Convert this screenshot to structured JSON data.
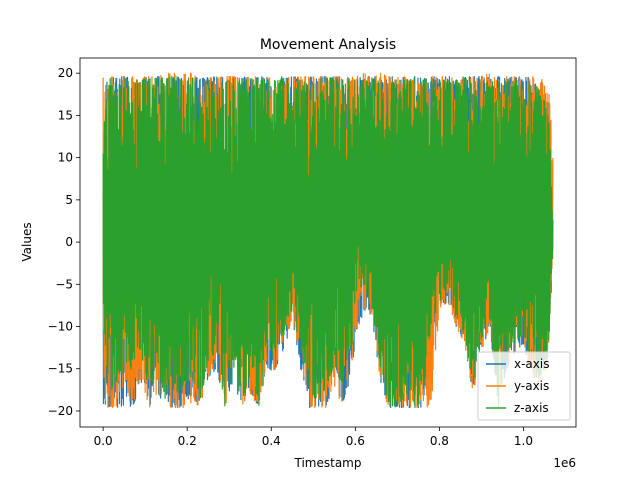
{
  "chart_data": {
    "type": "line",
    "title": "Movement Analysis",
    "xlabel": "Timestamp",
    "ylabel": "Values",
    "x_offset_label": "1e6",
    "xlim": [
      -0.055,
      1.125
    ],
    "ylim": [
      -21.9,
      21.8
    ],
    "x_ticks": [
      0.0,
      0.2,
      0.4,
      0.6,
      0.8,
      1.0
    ],
    "x_tick_labels": [
      "0.0",
      "0.2",
      "0.4",
      "0.6",
      "0.8",
      "1.0"
    ],
    "y_ticks": [
      -20,
      -15,
      -10,
      -5,
      0,
      5,
      10,
      15,
      20
    ],
    "y_tick_labels": [
      "−20",
      "−15",
      "−10",
      "−5",
      "0",
      "5",
      "10",
      "15",
      "20"
    ],
    "x_data_range": [
      0.0,
      1.07
    ],
    "legend_position": "lower-right",
    "series": [
      {
        "name": "x-axis",
        "color": "#1f77b4",
        "envelope": [
          [
            0.0,
            -19.6,
            12
          ],
          [
            0.01,
            -19.5,
            19.6
          ],
          [
            0.03,
            -19.6,
            19.6
          ],
          [
            0.05,
            -19.6,
            19.6
          ],
          [
            0.07,
            -19.5,
            19.5
          ],
          [
            0.09,
            -17,
            19.4
          ],
          [
            0.11,
            -19.6,
            19.6
          ],
          [
            0.13,
            -18,
            19.6
          ],
          [
            0.15,
            -19.5,
            19.5
          ],
          [
            0.17,
            -19.6,
            19.6
          ],
          [
            0.19,
            -19.5,
            19.5
          ],
          [
            0.21,
            -18,
            19.6
          ],
          [
            0.23,
            -19.6,
            19.4
          ],
          [
            0.25,
            -16,
            19.5
          ],
          [
            0.27,
            -15,
            19.6
          ],
          [
            0.29,
            -19.6,
            19.6
          ],
          [
            0.31,
            -17,
            19.5
          ],
          [
            0.33,
            -19.6,
            19.6
          ],
          [
            0.35,
            -18,
            19.4
          ],
          [
            0.37,
            -19.6,
            19.6
          ],
          [
            0.39,
            -16,
            19.5
          ],
          [
            0.41,
            -15,
            19.5
          ],
          [
            0.43,
            -13,
            19.6
          ],
          [
            0.45,
            -9,
            19.6
          ],
          [
            0.47,
            -15,
            19.5
          ],
          [
            0.49,
            -19.6,
            19.6
          ],
          [
            0.51,
            -19.6,
            19.6
          ],
          [
            0.53,
            -19.4,
            19.6
          ],
          [
            0.55,
            -17,
            19.6
          ],
          [
            0.57,
            -19.4,
            19.5
          ],
          [
            0.59,
            -16,
            19.6
          ],
          [
            0.6,
            -12,
            19.4
          ],
          [
            0.62,
            -8,
            19.6
          ],
          [
            0.64,
            -9,
            19.6
          ],
          [
            0.66,
            -17,
            19.5
          ],
          [
            0.68,
            -19.6,
            19.6
          ],
          [
            0.7,
            -19.6,
            19.6
          ],
          [
            0.72,
            -19.6,
            19.5
          ],
          [
            0.74,
            -19.6,
            19.6
          ],
          [
            0.76,
            -19.6,
            19.6
          ],
          [
            0.78,
            -12,
            19.6
          ],
          [
            0.8,
            -8,
            19.6
          ],
          [
            0.82,
            -7,
            19.6
          ],
          [
            0.84,
            -10,
            19.5
          ],
          [
            0.86,
            -12,
            19.6
          ],
          [
            0.88,
            -18,
            19.6
          ],
          [
            0.9,
            -13,
            19.6
          ],
          [
            0.92,
            -10,
            19.5
          ],
          [
            0.94,
            -19.6,
            19.6
          ],
          [
            0.96,
            -15,
            19.5
          ],
          [
            0.98,
            -13,
            19.5
          ],
          [
            1.0,
            -12,
            19.5
          ],
          [
            1.02,
            -16,
            19.5
          ],
          [
            1.04,
            -17,
            19.2
          ],
          [
            1.06,
            -14,
            17
          ],
          [
            1.07,
            -1,
            3
          ]
        ]
      },
      {
        "name": "y-axis",
        "color": "#ff7f0e",
        "envelope": [
          [
            0.0,
            -19.6,
            19.6
          ],
          [
            0.01,
            -19.6,
            19.6
          ],
          [
            0.03,
            -19.6,
            19.6
          ],
          [
            0.05,
            -17,
            19.6
          ],
          [
            0.07,
            -19.6,
            19.6
          ],
          [
            0.09,
            -16,
            19.6
          ],
          [
            0.11,
            -19.6,
            19.6
          ],
          [
            0.13,
            -18,
            19.6
          ],
          [
            0.15,
            -19.6,
            20.0
          ],
          [
            0.17,
            -19.6,
            20.0
          ],
          [
            0.19,
            -19.6,
            20.0
          ],
          [
            0.21,
            -19.6,
            20.0
          ],
          [
            0.23,
            -19.6,
            19.6
          ],
          [
            0.25,
            -16,
            19.6
          ],
          [
            0.27,
            -15,
            19.6
          ],
          [
            0.29,
            -19.6,
            19.6
          ],
          [
            0.31,
            -17,
            19.6
          ],
          [
            0.33,
            -19.6,
            19.6
          ],
          [
            0.35,
            -18,
            19.6
          ],
          [
            0.37,
            -19.6,
            19.6
          ],
          [
            0.39,
            -16,
            19.6
          ],
          [
            0.41,
            -15,
            19.6
          ],
          [
            0.43,
            -12,
            19.6
          ],
          [
            0.45,
            -9,
            19.6
          ],
          [
            0.47,
            -14,
            19.6
          ],
          [
            0.49,
            -19.6,
            19.6
          ],
          [
            0.51,
            -19.6,
            19.6
          ],
          [
            0.53,
            -19.6,
            19.6
          ],
          [
            0.55,
            -17,
            19.6
          ],
          [
            0.57,
            -19.6,
            19.6
          ],
          [
            0.59,
            -16,
            19.6
          ],
          [
            0.6,
            -11,
            19.6
          ],
          [
            0.62,
            -8,
            20.0
          ],
          [
            0.64,
            -9,
            19.6
          ],
          [
            0.66,
            -17,
            20.0
          ],
          [
            0.68,
            -19.6,
            19.6
          ],
          [
            0.7,
            -19.6,
            19.6
          ],
          [
            0.72,
            -19.6,
            19.6
          ],
          [
            0.74,
            -19.6,
            19.6
          ],
          [
            0.76,
            -19.6,
            19.6
          ],
          [
            0.78,
            -19.6,
            19.6
          ],
          [
            0.8,
            -8,
            19.6
          ],
          [
            0.82,
            -7,
            19.6
          ],
          [
            0.84,
            -10,
            19.6
          ],
          [
            0.86,
            -12,
            19.6
          ],
          [
            0.88,
            -18,
            19.6
          ],
          [
            0.9,
            -13,
            19.6
          ],
          [
            0.92,
            -10,
            20.0
          ],
          [
            0.94,
            -19.6,
            19.6
          ],
          [
            0.96,
            -15,
            19.6
          ],
          [
            0.98,
            -13,
            19.6
          ],
          [
            1.0,
            -12,
            19.6
          ],
          [
            1.02,
            -16,
            19.6
          ],
          [
            1.04,
            -17,
            19.6
          ],
          [
            1.06,
            -14,
            19.6
          ],
          [
            1.07,
            0,
            10
          ]
        ]
      },
      {
        "name": "z-axis",
        "color": "#2ca02c",
        "envelope": [
          [
            0.0,
            -8,
            12
          ],
          [
            0.01,
            -18,
            19.5
          ],
          [
            0.03,
            -17,
            19.5
          ],
          [
            0.05,
            -16,
            19.4
          ],
          [
            0.07,
            -15,
            19.4
          ],
          [
            0.09,
            -13,
            19.2
          ],
          [
            0.11,
            -18,
            19.5
          ],
          [
            0.13,
            -15,
            19.4
          ],
          [
            0.15,
            -19,
            19.5
          ],
          [
            0.17,
            -18,
            19.6
          ],
          [
            0.19,
            -19,
            19.6
          ],
          [
            0.21,
            -16,
            19.5
          ],
          [
            0.23,
            -19.5,
            19.2
          ],
          [
            0.25,
            -14,
            19.2
          ],
          [
            0.27,
            -13,
            19.4
          ],
          [
            0.29,
            -19.5,
            19.5
          ],
          [
            0.31,
            -15,
            19.3
          ],
          [
            0.33,
            -19,
            19.4
          ],
          [
            0.35,
            -16,
            19.2
          ],
          [
            0.37,
            -19.5,
            19.5
          ],
          [
            0.39,
            -14,
            19.2
          ],
          [
            0.41,
            -13,
            19.2
          ],
          [
            0.43,
            -11,
            19.4
          ],
          [
            0.45,
            -8,
            19.4
          ],
          [
            0.47,
            -13,
            19.2
          ],
          [
            0.49,
            -17,
            19.3
          ],
          [
            0.51,
            -19.5,
            19.4
          ],
          [
            0.53,
            -17,
            19.5
          ],
          [
            0.55,
            -15,
            19.4
          ],
          [
            0.57,
            -17,
            19.2
          ],
          [
            0.59,
            -14,
            19.4
          ],
          [
            0.6,
            -6,
            19.2
          ],
          [
            0.62,
            -5,
            19.4
          ],
          [
            0.64,
            -8,
            19.4
          ],
          [
            0.66,
            -15,
            19.2
          ],
          [
            0.68,
            -19.5,
            19.3
          ],
          [
            0.7,
            -19.5,
            19.4
          ],
          [
            0.72,
            -18,
            19.2
          ],
          [
            0.74,
            -19.5,
            19.4
          ],
          [
            0.76,
            -19,
            19.4
          ],
          [
            0.78,
            -10,
            19.4
          ],
          [
            0.8,
            -7,
            19.2
          ],
          [
            0.82,
            -6,
            19.2
          ],
          [
            0.84,
            -9,
            19.2
          ],
          [
            0.86,
            -11,
            19.4
          ],
          [
            0.88,
            -17,
            19.4
          ],
          [
            0.9,
            -12,
            19.2
          ],
          [
            0.92,
            -9,
            19.0
          ],
          [
            0.94,
            -19.5,
            19.4
          ],
          [
            0.96,
            -13,
            19.0
          ],
          [
            0.98,
            -12,
            19.2
          ],
          [
            1.0,
            -11,
            19.0
          ],
          [
            1.02,
            -15,
            19.0
          ],
          [
            1.04,
            -16,
            18.5
          ],
          [
            1.06,
            -12,
            16
          ],
          [
            1.07,
            -2,
            3
          ]
        ]
      }
    ]
  }
}
